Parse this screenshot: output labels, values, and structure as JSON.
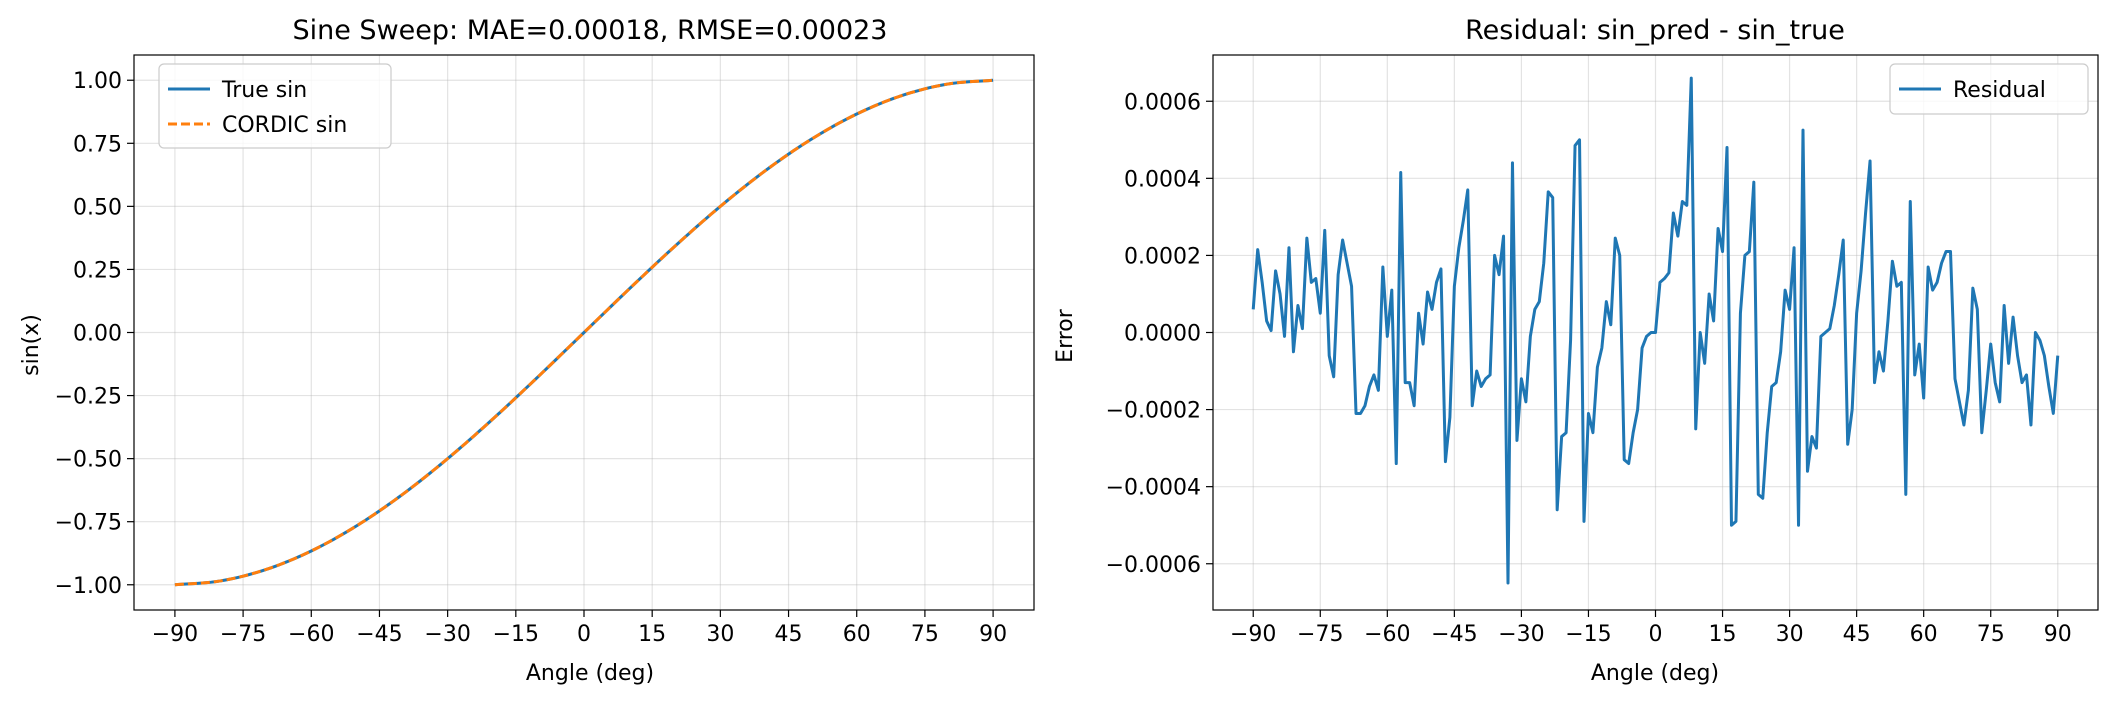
{
  "chart_data": [
    {
      "type": "line",
      "title": "Sine Sweep: MAE=0.00018, RMSE=0.00023",
      "xlabel": "Angle (deg)",
      "ylabel": "sin(x)",
      "xlim": [
        -99,
        99
      ],
      "ylim": [
        -1.1,
        1.1
      ],
      "xticks": [
        -90,
        -75,
        -60,
        -45,
        -30,
        -15,
        0,
        15,
        30,
        45,
        60,
        75,
        90
      ],
      "xtick_labels": [
        "−90",
        "−75",
        "−60",
        "−45",
        "−30",
        "−15",
        "0",
        "15",
        "30",
        "45",
        "60",
        "75",
        "90"
      ],
      "yticks": [
        -1.0,
        -0.75,
        -0.5,
        -0.25,
        0.0,
        0.25,
        0.5,
        0.75,
        1.0
      ],
      "ytick_labels": [
        "−1.00",
        "−0.75",
        "−0.50",
        "−0.25",
        "0.00",
        "0.25",
        "0.50",
        "0.75",
        "1.00"
      ],
      "grid": true,
      "legend": "top-left",
      "x": [
        -90,
        -80,
        -70,
        -60,
        -50,
        -40,
        -30,
        -20,
        -10,
        0,
        10,
        20,
        30,
        40,
        50,
        60,
        70,
        80,
        90
      ],
      "series": [
        {
          "name": "True sin",
          "color": "#1f77b4",
          "style": "solid",
          "values": [
            -1.0,
            -0.9848,
            -0.9397,
            -0.866,
            -0.766,
            -0.6428,
            -0.5,
            -0.342,
            -0.1736,
            0.0,
            0.1736,
            0.342,
            0.5,
            0.6428,
            0.766,
            0.866,
            0.9397,
            0.9848,
            1.0
          ]
        },
        {
          "name": "CORDIC sin",
          "color": "#ff7f0e",
          "style": "dashed",
          "values": [
            -1.0,
            -0.9848,
            -0.9397,
            -0.866,
            -0.766,
            -0.6428,
            -0.5,
            -0.342,
            -0.1736,
            0.0,
            0.1736,
            0.342,
            0.5,
            0.6428,
            0.766,
            0.866,
            0.9397,
            0.9848,
            1.0
          ]
        }
      ]
    },
    {
      "type": "line",
      "title": "Residual: sin_pred - sin_true",
      "xlabel": "Angle (deg)",
      "ylabel": "Error",
      "xlim": [
        -99,
        99
      ],
      "ylim": [
        -0.00072,
        0.00072
      ],
      "xticks": [
        -90,
        -75,
        -60,
        -45,
        -30,
        -15,
        0,
        15,
        30,
        45,
        60,
        75,
        90
      ],
      "xtick_labels": [
        "−90",
        "−75",
        "−60",
        "−45",
        "−30",
        "−15",
        "0",
        "15",
        "30",
        "45",
        "60",
        "75",
        "90"
      ],
      "yticks": [
        -0.0006,
        -0.0004,
        -0.0002,
        0.0,
        0.0002,
        0.0004,
        0.0006
      ],
      "ytick_labels": [
        "−0.0006",
        "−0.0004",
        "−0.0002",
        "0.0000",
        "0.0002",
        "0.0004",
        "0.0006"
      ],
      "grid": true,
      "legend": "top-right",
      "x": [
        -90,
        -89,
        -88,
        -87,
        -86,
        -85,
        -84,
        -83,
        -82,
        -81,
        -80,
        -79,
        -78,
        -77,
        -76,
        -75,
        -74,
        -73,
        -72,
        -71,
        -70,
        -69,
        -68,
        -67,
        -66,
        -65,
        -64,
        -63,
        -62,
        -61,
        -60,
        -59,
        -58,
        -57,
        -56,
        -55,
        -54,
        -53,
        -52,
        -51,
        -50,
        -49,
        -48,
        -47,
        -46,
        -45,
        -44,
        -43,
        -42,
        -41,
        -40,
        -39,
        -38,
        -37,
        -36,
        -35,
        -34,
        -33,
        -32,
        -31,
        -30,
        -29,
        -28,
        -27,
        -26,
        -25,
        -24,
        -23,
        -22,
        -21,
        -20,
        -19,
        -18,
        -17,
        -16,
        -15,
        -14,
        -13,
        -12,
        -11,
        -10,
        -9,
        -8,
        -7,
        -6,
        -5,
        -4,
        -3,
        -2,
        -1,
        0,
        1,
        2,
        3,
        4,
        5,
        6,
        7,
        8,
        9,
        10,
        11,
        12,
        13,
        14,
        15,
        16,
        17,
        18,
        19,
        20,
        21,
        22,
        23,
        24,
        25,
        26,
        27,
        28,
        29,
        30,
        31,
        32,
        33,
        34,
        35,
        36,
        37,
        38,
        39,
        40,
        41,
        42,
        43,
        44,
        45,
        46,
        47,
        48,
        49,
        50,
        51,
        52,
        53,
        54,
        55,
        56,
        57,
        58,
        59,
        60,
        61,
        62,
        63,
        64,
        65,
        66,
        67,
        68,
        69,
        70,
        71,
        72,
        73,
        74,
        75,
        76,
        77,
        78,
        79,
        80,
        81,
        82,
        83,
        84,
        85,
        86,
        87,
        88,
        89,
        90
      ],
      "series": [
        {
          "name": "Residual",
          "color": "#1f77b4",
          "style": "solid",
          "values": [
            6e-05,
            0.000215,
            0.00013,
            3e-05,
            5e-06,
            0.00016,
            0.0001,
            -1e-05,
            0.00022,
            -5e-05,
            7e-05,
            1e-05,
            0.000245,
            0.00013,
            0.00014,
            5e-05,
            0.000265,
            -6e-05,
            -0.000115,
            0.00015,
            0.00024,
            0.00018,
            0.00012,
            -0.00021,
            -0.00021,
            -0.00019,
            -0.00014,
            -0.00011,
            -0.00015,
            0.00017,
            -1e-05,
            0.00011,
            -0.00034,
            0.000415,
            -0.00013,
            -0.00013,
            -0.00019,
            5e-05,
            -3e-05,
            0.000105,
            6e-05,
            0.00013,
            0.000165,
            -0.000335,
            -0.00022,
            0.00012,
            0.00022,
            0.00029,
            0.00037,
            -0.00019,
            -0.0001,
            -0.00014,
            -0.00012,
            -0.00011,
            0.0002,
            0.00015,
            0.00025,
            -0.00065,
            0.00044,
            -0.00028,
            -0.00012,
            -0.00018,
            -1e-05,
            6e-05,
            8e-05,
            0.00018,
            0.000365,
            0.00035,
            -0.00046,
            -0.00027,
            -0.00026,
            -2e-05,
            0.000485,
            0.0005,
            -0.00049,
            -0.00021,
            -0.00026,
            -9e-05,
            -4e-05,
            8e-05,
            2e-05,
            0.000245,
            0.0002,
            -0.00033,
            -0.00034,
            -0.00026,
            -0.0002,
            -4e-05,
            -1e-05,
            0.0,
            0.0,
            0.00013,
            0.00014,
            0.000155,
            0.00031,
            0.00025,
            0.00034,
            0.00033,
            0.00066,
            -0.00025,
            0.0,
            -8e-05,
            0.0001,
            3e-05,
            0.00027,
            0.00021,
            0.00048,
            -0.0005,
            -0.00049,
            5e-05,
            0.0002,
            0.00021,
            0.00039,
            -0.00042,
            -0.00043,
            -0.00026,
            -0.00014,
            -0.00013,
            -5e-05,
            0.00011,
            6e-05,
            0.00022,
            -0.0005,
            0.000525,
            -0.00036,
            -0.00027,
            -0.0003,
            -1e-05,
            0.0,
            1e-05,
            7e-05,
            0.00015,
            0.00024,
            -0.00029,
            -0.0002,
            5e-05,
            0.00016,
            0.00031,
            0.000445,
            -0.00013,
            -5e-05,
            -0.0001,
            3e-05,
            0.000185,
            0.00012,
            0.00013,
            -0.00042,
            0.00034,
            -0.00011,
            -3e-05,
            -0.00017,
            0.00017,
            0.00011,
            0.00013,
            0.00018,
            0.00021,
            0.00021,
            -0.00012,
            -0.00018,
            -0.00024,
            -0.00015,
            0.000115,
            6e-05,
            -0.00026,
            -0.00015,
            -3e-05,
            -0.00013,
            -0.00018,
            7e-05,
            -8e-05,
            4e-05,
            -6e-05,
            -0.00013,
            -0.00011,
            -0.00024,
            0.0,
            -2e-05,
            -6e-05,
            -0.00014,
            -0.00021,
            -6e-05
          ]
        }
      ]
    }
  ]
}
